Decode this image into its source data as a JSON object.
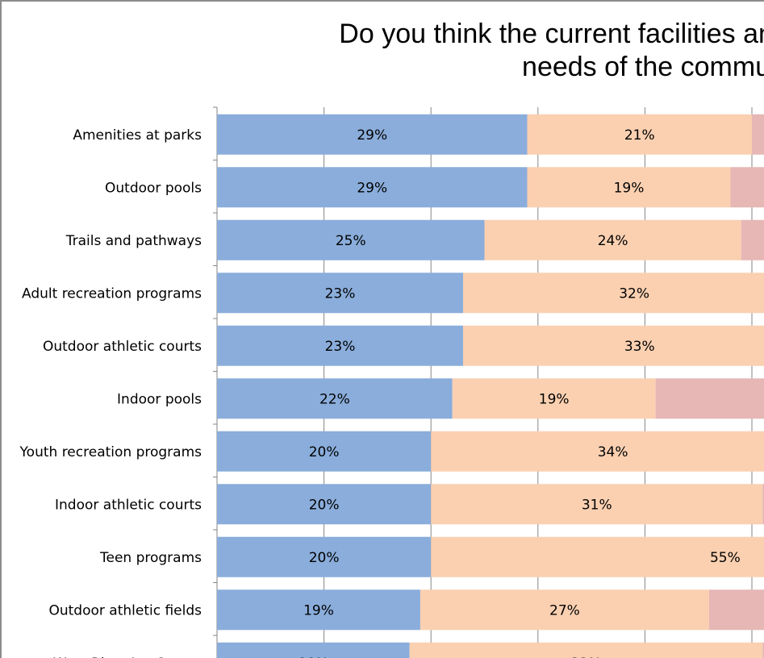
{
  "chart_data": {
    "type": "bar",
    "orientation": "horizontal",
    "stacked": true,
    "title_lines": [
      "Do you think the current facilities and services meet the",
      "needs of the community?"
    ],
    "categories": [
      "Amenities at parks",
      "Outdoor pools",
      "Trails and pathways",
      "Adult recreation programs",
      "Outdoor athletic courts",
      "Indoor pools",
      "Youth recreation programs",
      "Indoor athletic courts",
      "Teen programs",
      "Outdoor athletic fields",
      "West River Ice Center"
    ],
    "series": [
      {
        "name": "Series 1",
        "color": "#8aaddb",
        "values": [
          29,
          29,
          25,
          23,
          23,
          22,
          20,
          20,
          20,
          19,
          18
        ],
        "labels": [
          "29%",
          "29%",
          "25%",
          "23%",
          "23%",
          "22%",
          "20%",
          "20%",
          "20%",
          "19%",
          "18%"
        ]
      },
      {
        "name": "Series 2",
        "color": "#fad0b1",
        "values": [
          21,
          19,
          24,
          32,
          33,
          19,
          34,
          31,
          55,
          27,
          33
        ],
        "labels": [
          "21%",
          "19%",
          "24%",
          "32%",
          "33%",
          "19%",
          "34%",
          "31%",
          "55%",
          "27%",
          "33%"
        ]
      },
      {
        "name": "Series 3",
        "color": "#e6b7b5",
        "values": [
          30,
          32,
          30,
          30,
          30,
          40,
          30,
          30,
          25,
          33,
          30
        ],
        "labels": []
      }
    ],
    "xlim": [
      0,
      100
    ],
    "gridlines": true
  }
}
